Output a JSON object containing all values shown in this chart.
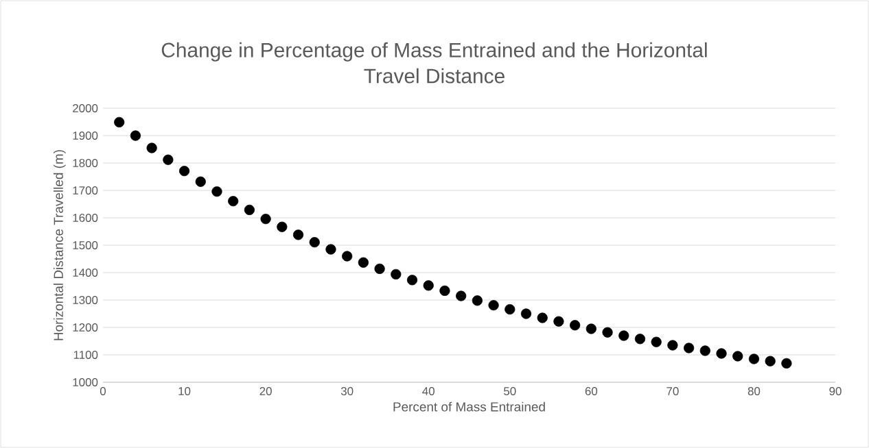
{
  "chart_data": {
    "type": "scatter",
    "title": "Change in Percentage of Mass Entrained and the Horizontal Travel Distance",
    "xlabel": "Percent of Mass Entrained",
    "ylabel": "Horizontal Distance Travelled  (m)",
    "x": [
      2,
      4,
      6,
      8,
      10,
      12,
      14,
      16,
      18,
      20,
      22,
      24,
      26,
      28,
      30,
      32,
      34,
      36,
      38,
      40,
      42,
      44,
      46,
      48,
      50,
      52,
      54,
      56,
      58,
      60,
      62,
      64,
      66,
      68,
      70,
      72,
      74,
      76,
      78,
      80,
      82,
      84
    ],
    "values": [
      1949,
      1900,
      1855,
      1812,
      1771,
      1732,
      1696,
      1661,
      1629,
      1596,
      1567,
      1538,
      1511,
      1485,
      1460,
      1437,
      1414,
      1394,
      1373,
      1353,
      1334,
      1315,
      1298,
      1281,
      1266,
      1250,
      1235,
      1222,
      1208,
      1195,
      1182,
      1170,
      1158,
      1147,
      1135,
      1125,
      1115,
      1105,
      1095,
      1085,
      1077,
      1069
    ],
    "color": "#000000",
    "marker": "circle",
    "xlim": [
      0,
      90
    ],
    "xticks": [
      0,
      10,
      20,
      30,
      40,
      50,
      60,
      70,
      80,
      90
    ],
    "ylim": [
      1000,
      2000
    ],
    "yticks": [
      1000,
      1100,
      1200,
      1300,
      1400,
      1500,
      1600,
      1700,
      1800,
      1900,
      2000
    ],
    "grid": "y"
  }
}
